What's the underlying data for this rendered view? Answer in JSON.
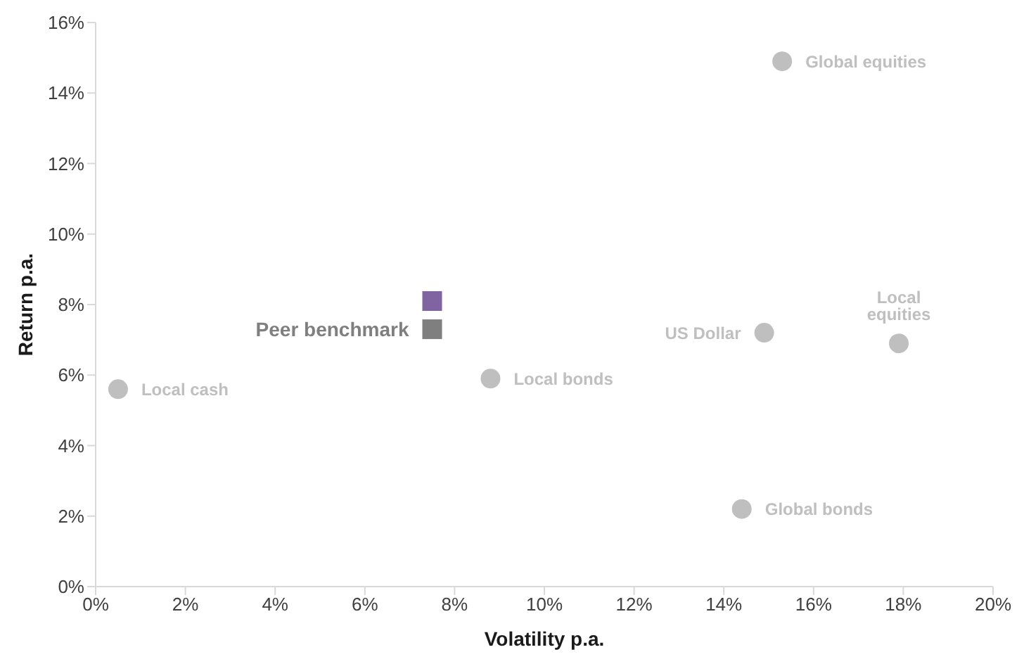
{
  "chart_data": {
    "type": "scatter",
    "xlabel": "Volatility p.a.",
    "ylabel": "Return p.a.",
    "xlim": [
      0,
      20
    ],
    "xticks": [
      {
        "value": 0,
        "label": "0%"
      },
      {
        "value": 2,
        "label": "2%"
      },
      {
        "value": 4,
        "label": "4%"
      },
      {
        "value": 6,
        "label": "6%"
      },
      {
        "value": 8,
        "label": "8%"
      },
      {
        "value": 10,
        "label": "10%"
      },
      {
        "value": 12,
        "label": "12%"
      },
      {
        "value": 14,
        "label": "14%"
      },
      {
        "value": 16,
        "label": "16%"
      },
      {
        "value": 18,
        "label": "18%"
      },
      {
        "value": 20,
        "label": "20%"
      }
    ],
    "ylim": [
      0,
      16
    ],
    "yticks": [
      {
        "value": 0,
        "label": "0%"
      },
      {
        "value": 2,
        "label": "2%"
      },
      {
        "value": 4,
        "label": "4%"
      },
      {
        "value": 6,
        "label": "6%"
      },
      {
        "value": 8,
        "label": "8%"
      },
      {
        "value": 10,
        "label": "10%"
      },
      {
        "value": 12,
        "label": "12%"
      },
      {
        "value": 14,
        "label": "14%"
      },
      {
        "value": 16,
        "label": "16%"
      }
    ],
    "grid": false,
    "legend": false,
    "series": [
      {
        "name": "Local cash",
        "color": "#bfbfbf",
        "marker": "circle",
        "x": [
          0.5
        ],
        "values": [
          5.6
        ]
      },
      {
        "name": "Local bonds",
        "color": "#bfbfbf",
        "marker": "circle",
        "x": [
          8.8
        ],
        "values": [
          5.9
        ]
      },
      {
        "name": "US Dollar",
        "color": "#bfbfbf",
        "marker": "circle",
        "x": [
          14.9
        ],
        "values": [
          7.2
        ]
      },
      {
        "name": "Global equities",
        "color": "#bfbfbf",
        "marker": "circle",
        "x": [
          15.3
        ],
        "values": [
          14.9
        ]
      },
      {
        "name": "Local equities",
        "color": "#bfbfbf",
        "marker": "circle",
        "x": [
          17.9
        ],
        "values": [
          6.9
        ]
      },
      {
        "name": "Global bonds",
        "color": "#bfbfbf",
        "marker": "circle",
        "x": [
          14.4
        ],
        "values": [
          2.2
        ]
      },
      {
        "color": "#8064a2",
        "marker": "square",
        "x": [
          7.5
        ],
        "values": [
          8.1
        ]
      },
      {
        "name": "Peer benchmark",
        "color": "#7f7f7f",
        "marker": "square",
        "x": [
          7.5
        ],
        "values": [
          7.3
        ]
      }
    ]
  }
}
